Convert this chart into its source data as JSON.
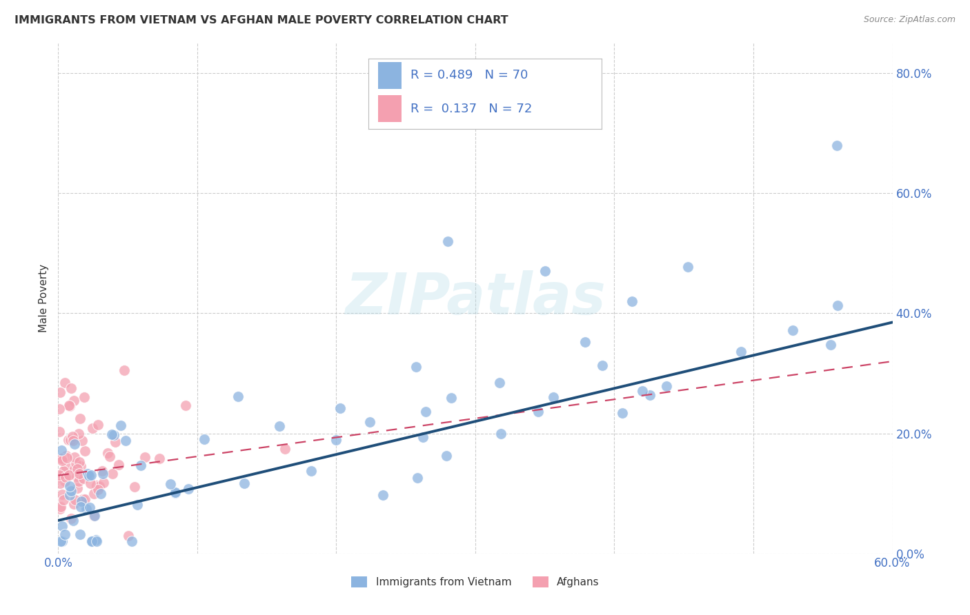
{
  "title": "IMMIGRANTS FROM VIETNAM VS AFGHAN MALE POVERTY CORRELATION CHART",
  "source": "Source: ZipAtlas.com",
  "ylabel": "Male Poverty",
  "xlim": [
    0.0,
    0.6
  ],
  "ylim": [
    0.0,
    0.85
  ],
  "blue_color": "#8cb4e0",
  "pink_color": "#f4a0b0",
  "blue_line_color": "#1f4e79",
  "pink_line_color": "#cc4466",
  "watermark_text": "ZIPatlas",
  "legend_R1": "R = 0.489",
  "legend_N1": "N = 70",
  "legend_R2": "R =  0.137",
  "legend_N2": "N = 72",
  "blue_trend": [
    0.0,
    0.055,
    0.6,
    0.385
  ],
  "pink_trend": [
    0.0,
    0.13,
    0.6,
    0.32
  ],
  "x_tick_show": [
    0.0,
    0.6
  ],
  "x_tick_labels": [
    "0.0%",
    "60.0%"
  ],
  "x_tick_minor": [
    0.1,
    0.2,
    0.3,
    0.4,
    0.5
  ],
  "y_tick_vals": [
    0.0,
    0.2,
    0.4,
    0.6,
    0.8
  ],
  "y_tick_labels": [
    "0.0%",
    "20.0%",
    "40.0%",
    "60.0%",
    "80.0%"
  ],
  "background_color": "#ffffff",
  "grid_color": "#cccccc",
  "axis_color": "#4472c4",
  "label_color": "#333333"
}
